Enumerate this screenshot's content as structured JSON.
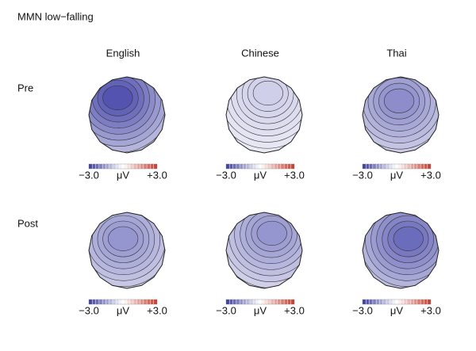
{
  "title": "MMN low−falling",
  "columns": [
    "English",
    "Chinese",
    "Thai"
  ],
  "rows": [
    "Pre",
    "Post"
  ],
  "colorbar": {
    "min_label": "−3.0",
    "unit": "μV",
    "max_label": "+3.0"
  }
}
